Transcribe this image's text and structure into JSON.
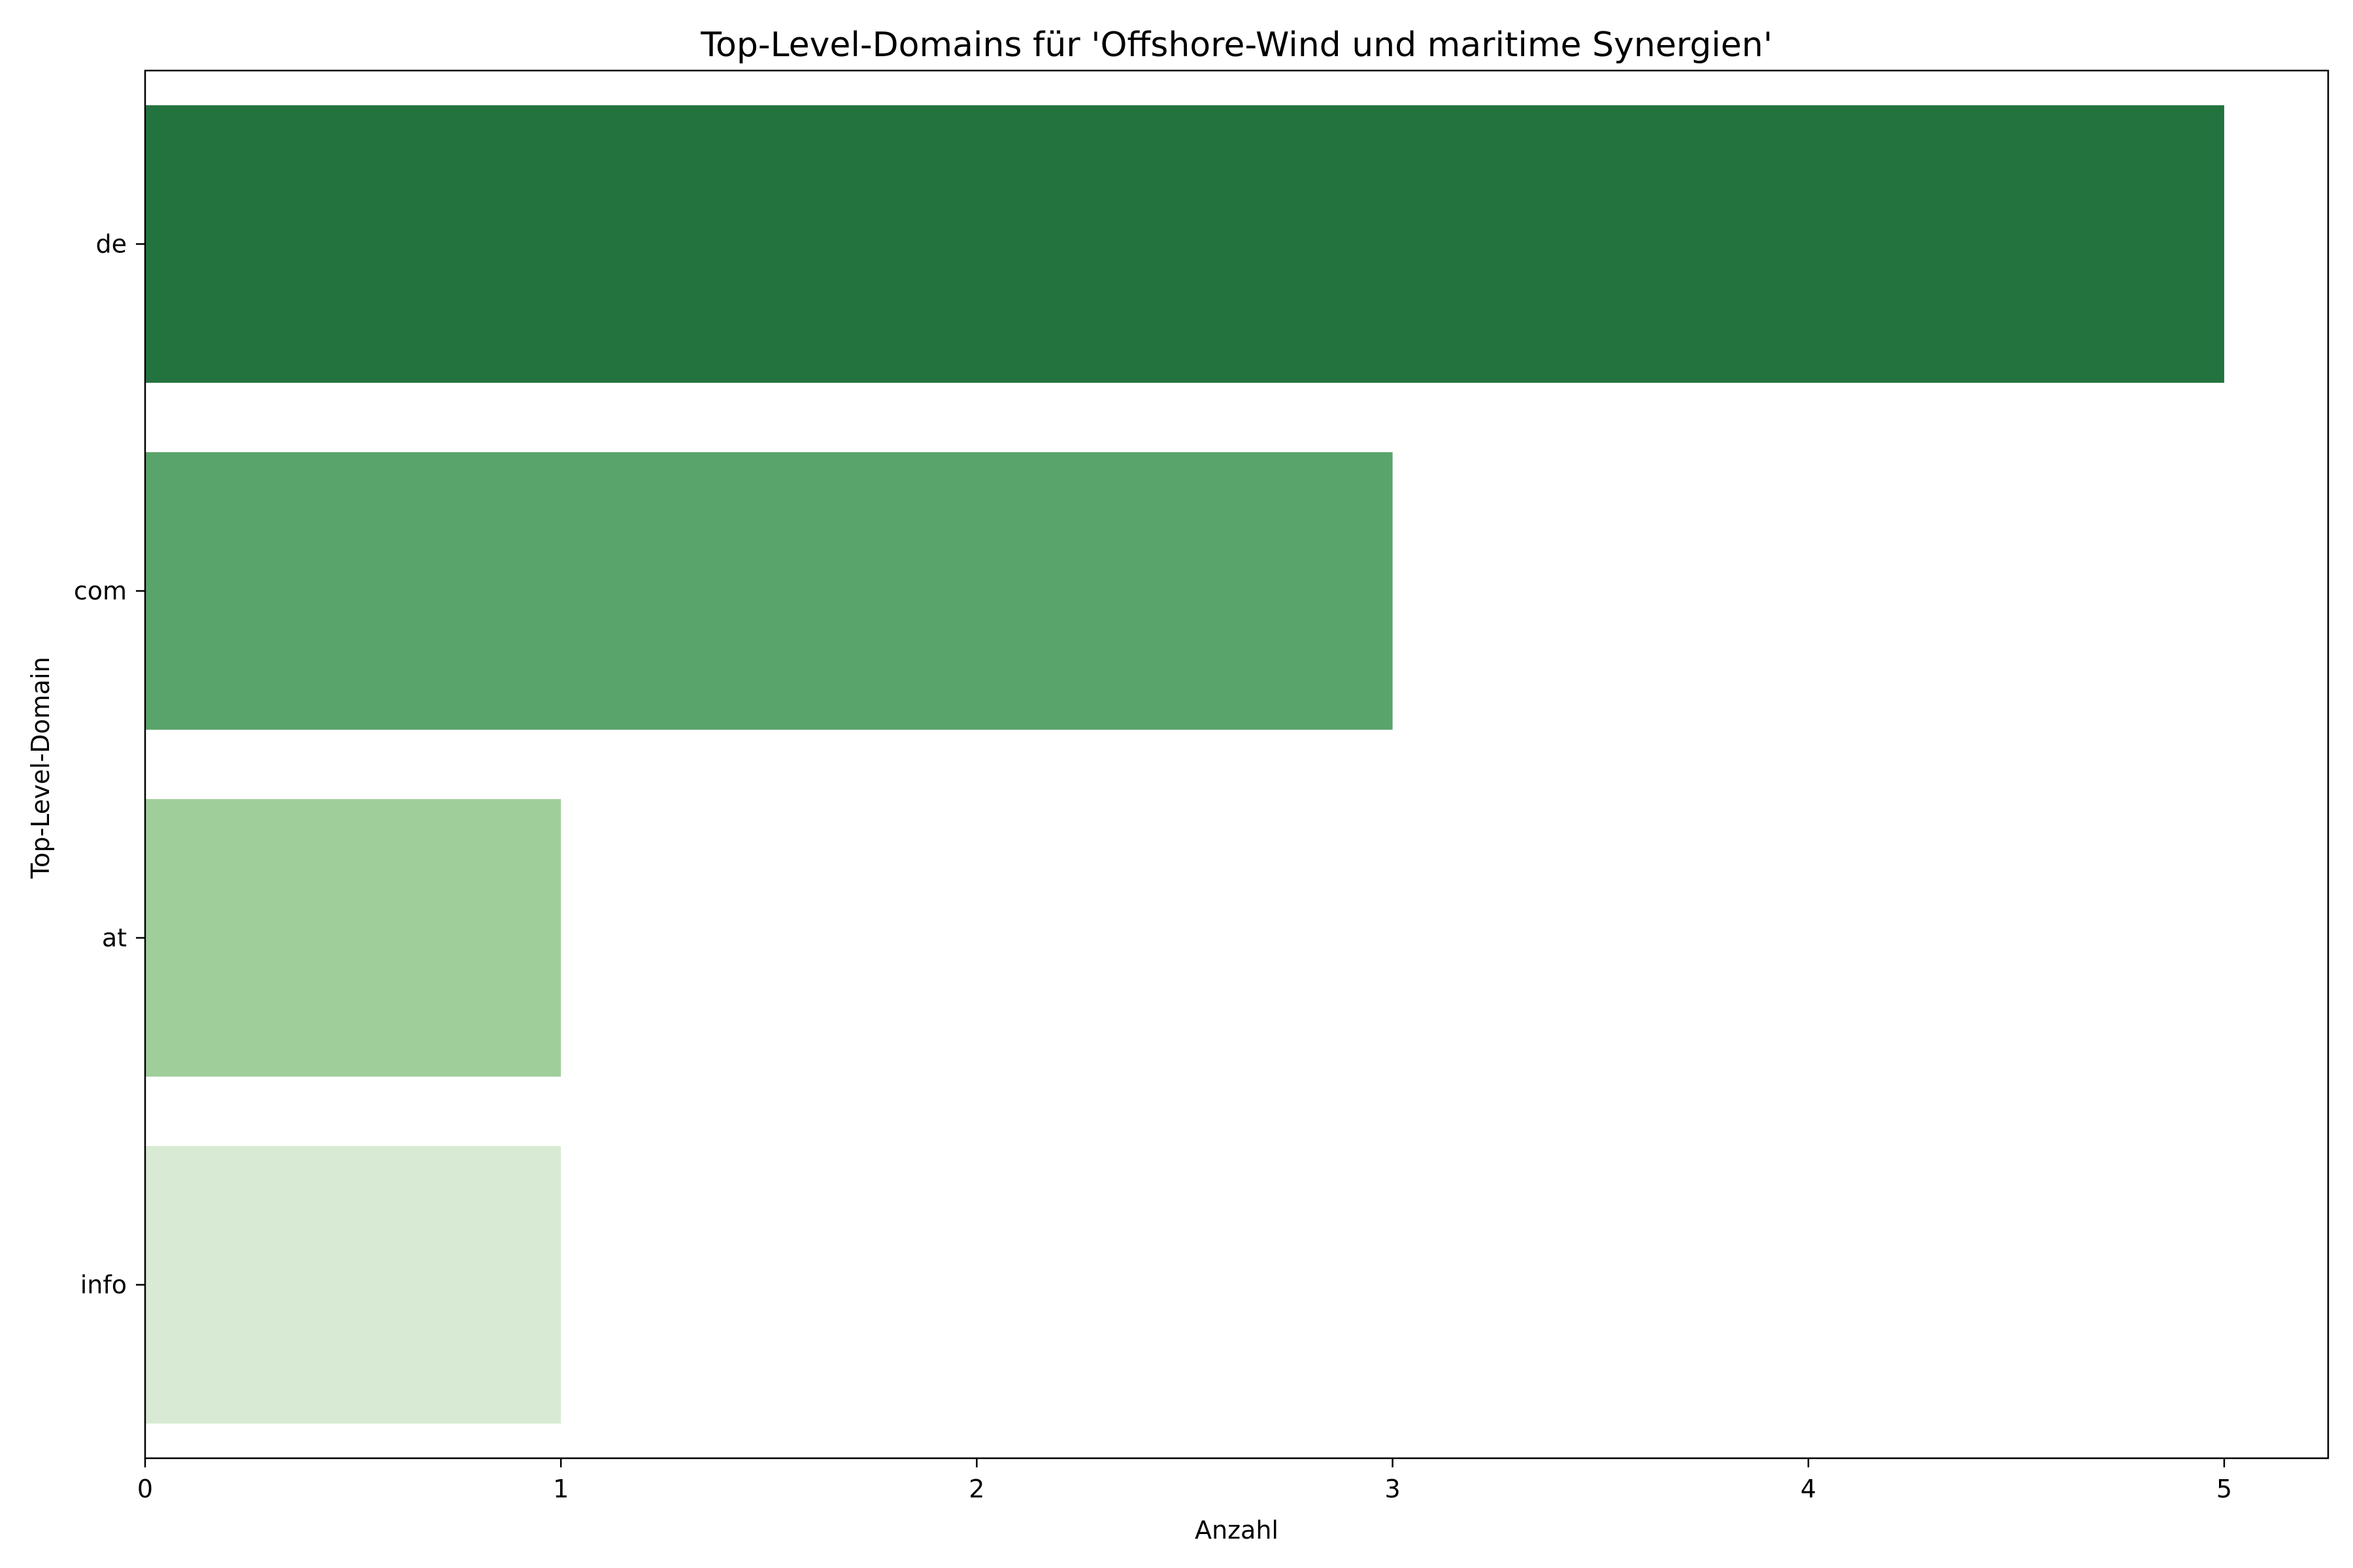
{
  "chart_data": {
    "type": "bar",
    "orientation": "horizontal",
    "title": "Top-Level-Domains für 'Offshore-Wind und maritime Synergien'",
    "xlabel": "Anzahl",
    "ylabel": "Top-Level-Domain",
    "categories": [
      "de",
      "com",
      "at",
      "info"
    ],
    "values": [
      5,
      3,
      1,
      1
    ],
    "colors": [
      "#23733f",
      "#59a46a",
      "#a0ce9a",
      "#d8ead3"
    ],
    "xlim": [
      0,
      5.25
    ],
    "xticks": [
      0,
      1,
      2,
      3,
      4,
      5
    ],
    "grid": false,
    "legend": false
  }
}
